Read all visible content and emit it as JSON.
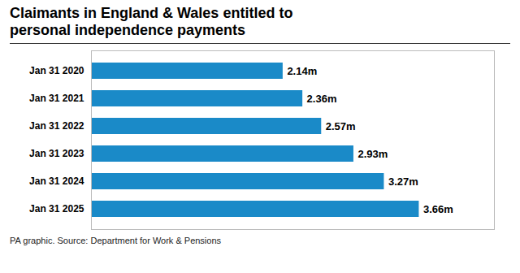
{
  "chart_data": {
    "type": "bar",
    "orientation": "horizontal",
    "title": "Claimants in England & Wales entitled to\npersonal independence payments",
    "caption": "PA graphic. Source: Department for Work & Pensions",
    "categories": [
      "Jan 31 2020",
      "Jan 31 2021",
      "Jan 31 2022",
      "Jan 31 2023",
      "Jan 31 2024",
      "Jan 31 2025"
    ],
    "values": [
      2.14,
      2.36,
      2.57,
      2.93,
      3.27,
      3.66
    ],
    "value_labels": [
      "2.14m",
      "2.36m",
      "2.57m",
      "2.93m",
      "3.27m",
      "3.66m"
    ],
    "color": "#1a8ac8",
    "xlim": [
      0,
      4.5
    ],
    "grid": false,
    "data_labels": true,
    "tick_labels": "y"
  }
}
